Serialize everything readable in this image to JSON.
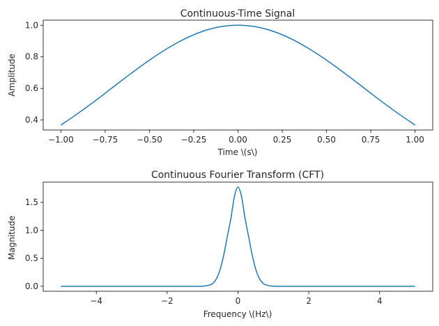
{
  "chart_data": [
    {
      "type": "line",
      "title": "Continuous-Time Signal",
      "xlabel": "Time \\(s\\)",
      "ylabel": "Amplitude",
      "xlim": [
        -1.1,
        1.1
      ],
      "ylim": [
        0.337,
        1.032
      ],
      "xticks": [
        -1.0,
        -0.75,
        -0.5,
        -0.25,
        0.0,
        0.25,
        0.5,
        0.75,
        1.0
      ],
      "xtick_labels": [
        "−1.00",
        "−0.75",
        "−0.50",
        "−0.25",
        "0.00",
        "0.25",
        "0.50",
        "0.75",
        "1.00"
      ],
      "yticks": [
        0.4,
        0.6,
        0.8,
        1.0
      ],
      "ytick_labels": [
        "0.4",
        "0.6",
        "0.8",
        "1.0"
      ],
      "grid": false,
      "color": "#1f77b4",
      "series": [
        {
          "x": [
            -1.0,
            -0.9,
            -0.8,
            -0.7,
            -0.6,
            -0.5,
            -0.4,
            -0.3,
            -0.2,
            -0.1,
            0.0,
            0.1,
            0.2,
            0.3,
            0.4,
            0.5,
            0.6,
            0.7,
            0.8,
            0.9,
            1.0
          ],
          "values": [
            0.368,
            0.445,
            0.527,
            0.613,
            0.698,
            0.779,
            0.852,
            0.914,
            0.961,
            0.99,
            1.0,
            0.99,
            0.961,
            0.914,
            0.852,
            0.779,
            0.698,
            0.613,
            0.527,
            0.445,
            0.368
          ]
        }
      ]
    },
    {
      "type": "line",
      "title": "Continuous Fourier Transform (CFT)",
      "xlabel": "Frequency \\(Hz\\)",
      "ylabel": "Magnitude",
      "xlim": [
        -5.5,
        5.5
      ],
      "ylim": [
        -0.089,
        1.861
      ],
      "xticks": [
        -4,
        -2,
        0,
        2,
        4
      ],
      "xtick_labels": [
        "−4",
        "−2",
        "0",
        "2",
        "4"
      ],
      "yticks": [
        0.0,
        0.5,
        1.0,
        1.5
      ],
      "ytick_labels": [
        "0.0",
        "0.5",
        "1.0",
        "1.5"
      ],
      "grid": false,
      "color": "#1f77b4",
      "series": [
        {
          "x": [
            -5.0,
            -3.0,
            -1.5,
            -1.0,
            -0.8,
            -0.7,
            -0.6,
            -0.5,
            -0.4,
            -0.3,
            -0.2,
            -0.1,
            0.0,
            0.1,
            0.2,
            0.3,
            0.4,
            0.5,
            0.6,
            0.7,
            0.8,
            1.0,
            1.5,
            3.0,
            5.0
          ],
          "values": [
            0.0,
            0.0,
            0.0,
            0.001,
            0.022,
            0.058,
            0.144,
            0.308,
            0.564,
            0.891,
            1.212,
            1.605,
            1.772,
            1.605,
            1.212,
            0.891,
            0.564,
            0.308,
            0.144,
            0.058,
            0.022,
            0.001,
            0.0,
            0.0,
            0.0
          ]
        }
      ]
    }
  ]
}
